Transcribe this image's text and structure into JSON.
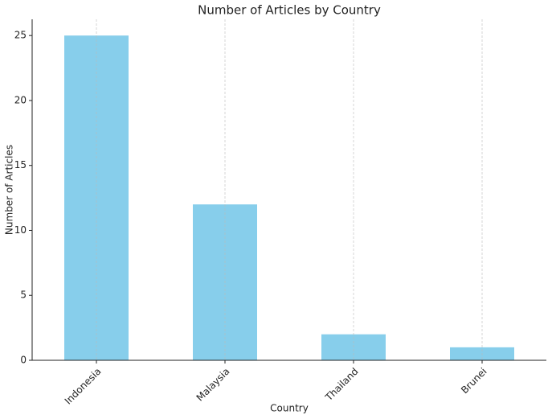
{
  "chart_data": {
    "type": "bar",
    "title": "Number of Articles by Country",
    "x_label": "Country",
    "y_label": "Number of Articles",
    "categories": [
      "Indonesia",
      "Malaysia",
      "Thailand",
      "Brunei"
    ],
    "values": [
      25,
      12,
      2,
      1
    ],
    "color": "#87ceeb",
    "ylim": [
      0,
      26.25
    ],
    "yticks": [
      0,
      5,
      10,
      15,
      20,
      25
    ],
    "grid": "x"
  }
}
